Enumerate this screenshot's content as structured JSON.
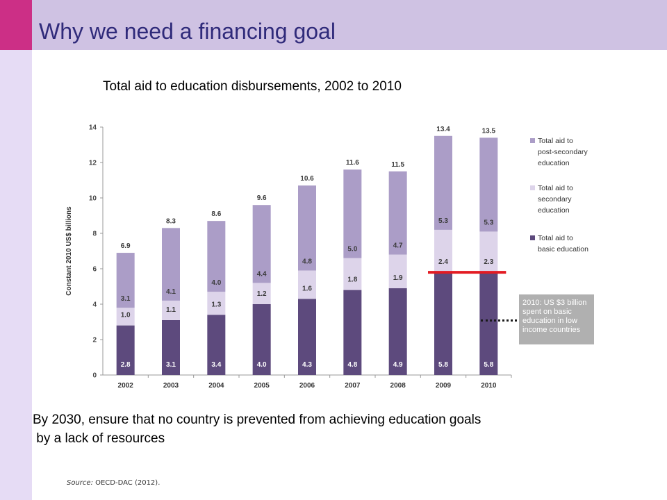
{
  "page": {
    "title": "Why we need a financing goal",
    "colors": {
      "header": "#cfc2e3",
      "accent": "#cc2f86",
      "strip": "#e6dcf5",
      "title": "#2f2a7a"
    }
  },
  "chart_data": {
    "type": "bar",
    "stacked": true,
    "title": "Total aid to education disbursements, 2002 to 2010",
    "xlabel": "",
    "ylabel": "Constant 2010 US$ billions",
    "ylim": [
      0,
      14
    ],
    "yticks": [
      0,
      2,
      4,
      6,
      8,
      10,
      12,
      14
    ],
    "categories": [
      "2002",
      "2003",
      "2004",
      "2005",
      "2006",
      "2007",
      "2008",
      "2009",
      "2010"
    ],
    "totals": [
      "6.9",
      "8.3",
      "8.6",
      "9.6",
      "10.6",
      "11.6",
      "11.5",
      "13.4",
      "13.5"
    ],
    "series": [
      {
        "name": "Total aid to basic education",
        "legend_lines": [
          "Total aid to",
          "basic education"
        ],
        "color": "#5d4a7d",
        "values": [
          2.8,
          3.1,
          3.4,
          4.0,
          4.3,
          4.8,
          4.9,
          5.8,
          5.8
        ],
        "labels": [
          "2.8",
          "3.1",
          "3.4",
          "4.0",
          "4.3",
          "4.8",
          "4.9",
          "5.8",
          "5.8"
        ]
      },
      {
        "name": "Total aid to secondary education",
        "legend_lines": [
          "Total aid to",
          "secondary",
          "education"
        ],
        "color": "#ddd4ea",
        "values": [
          1.0,
          1.1,
          1.3,
          1.2,
          1.6,
          1.8,
          1.9,
          2.4,
          2.3
        ],
        "labels": [
          "1.0",
          "1.1",
          "1.3",
          "1.2",
          "1.6",
          "1.8",
          "1.9",
          "2.4",
          "2.3"
        ]
      },
      {
        "name": "Total aid to post-secondary education",
        "legend_lines": [
          "Total aid to",
          "post-secondary",
          "education"
        ],
        "color": "#ab9dc7",
        "values": [
          3.1,
          4.1,
          4.0,
          4.4,
          4.8,
          5.0,
          4.7,
          5.3,
          5.3
        ],
        "labels": [
          "3.1",
          "4.1",
          "4.0",
          "4.4",
          "4.8",
          "5.0",
          "4.7",
          "5.3",
          "5.3"
        ]
      }
    ],
    "legend": "right",
    "grid": false,
    "annotation": {
      "text_lines": [
        "2010: US $3 billion",
        "spent on basic",
        "education in low",
        "income countries"
      ],
      "marker_value": 5.8,
      "marker_color": "#e31b23"
    }
  },
  "body_text": {
    "line1": "By 2030, ensure that no country is prevented from achieving education goals",
    "line2": " by a lack of resources"
  },
  "source": {
    "label": "Source:",
    "text": " OECD-DAC (2012)."
  }
}
